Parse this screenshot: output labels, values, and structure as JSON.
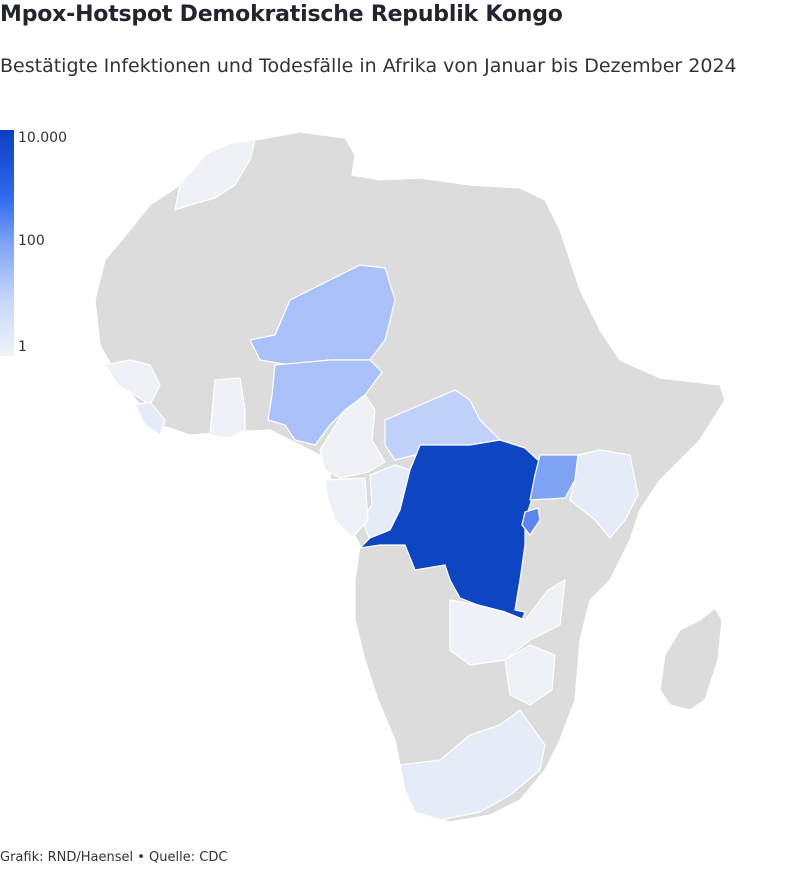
{
  "title": "Mpox-Hotspot Demokratische Republik Kongo",
  "subtitle": "Bestätigte Infektionen und Todesfälle in Afrika von Januar bis Dezember 2024",
  "legend": {
    "labels": [
      "10.000",
      "100",
      "1"
    ],
    "color_max": "#0b3fc0",
    "color_mid": "#7ea3f5",
    "color_min": "#f0f3f8"
  },
  "colors": {
    "no_data": "#dcdcdc",
    "border": "#ffffff",
    "drc": "#0d45c2",
    "uganda": "#7ea3f5",
    "burundi": "#5c86ee",
    "niger": "#a9c0f8",
    "nigeria": "#a9c0f8",
    "car": "#c0d1fa",
    "low": "#e6ebf8",
    "very_low": "#eef1f5"
  },
  "footer": "Grafik: RND/Haensel • Quelle: CDC"
}
